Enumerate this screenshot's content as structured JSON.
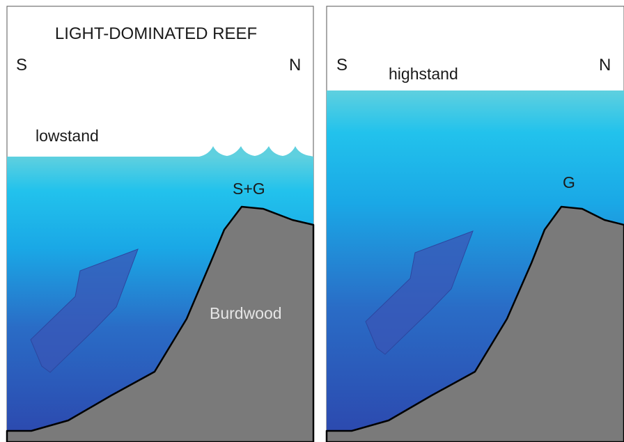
{
  "left_panel": {
    "title": "LIGHT-DOMINATED REEF",
    "direction_left": "S",
    "direction_right": "N",
    "sea_level_label": "lowstand",
    "reef_label": "S+G",
    "bank_label": "Burdwood"
  },
  "right_panel": {
    "direction_left": "S",
    "direction_right": "N",
    "sea_level_label": "highstand",
    "reef_label": "G"
  },
  "colors": {
    "water_top": "#5fd0df",
    "water_mid": "#1ab8ee",
    "water_deep": "#2d4bb0",
    "rock": "#7a7a7a",
    "arrow": "#3a55b5"
  }
}
